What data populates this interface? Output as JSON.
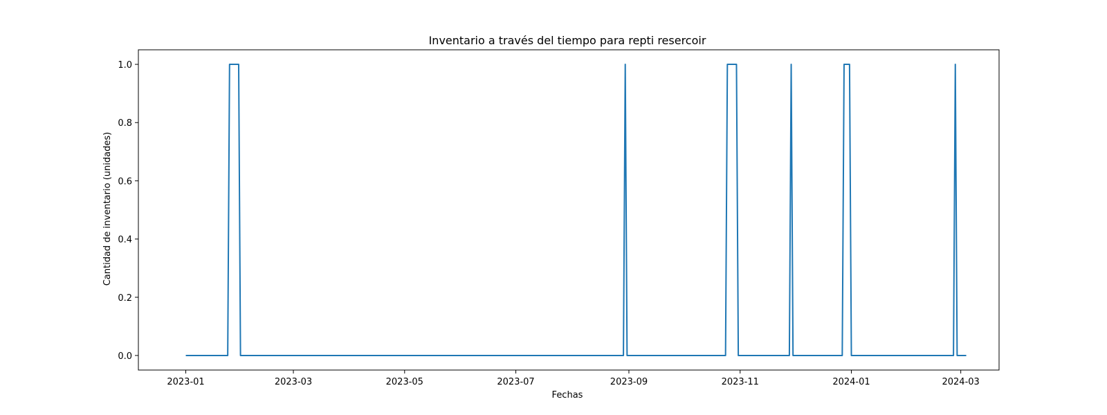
{
  "chart_data": {
    "type": "line",
    "title": "Inventario a través del tiempo para  repti resercoir",
    "xlabel": "Fechas",
    "ylabel": "Cantidad de inventario (unidades)",
    "xlim": [
      "2022-12-06",
      "2024-03-22"
    ],
    "ylim": [
      -0.05,
      1.05
    ],
    "grid": false,
    "x_ticks": [
      "2023-01",
      "2023-03",
      "2023-05",
      "2023-07",
      "2023-09",
      "2023-11",
      "2024-01",
      "2024-03"
    ],
    "y_ticks": [
      "0.0",
      "0.2",
      "0.4",
      "0.6",
      "0.8",
      "1.0"
    ],
    "y_tick_values": [
      0,
      0.2,
      0.4,
      0.6,
      0.8,
      1.0
    ],
    "series": [
      {
        "color": "#1f77b4",
        "x": [
          "2023-01-01",
          "2023-01-24",
          "2023-01-25",
          "2023-01-30",
          "2023-01-31",
          "2023-08-29",
          "2023-08-30",
          "2023-08-31",
          "2023-10-24",
          "2023-10-25",
          "2023-10-30",
          "2023-10-31",
          "2023-11-28",
          "2023-11-29",
          "2023-11-30",
          "2023-12-27",
          "2023-12-28",
          "2023-12-31",
          "2024-01-01",
          "2024-02-26",
          "2024-02-27",
          "2024-02-28",
          "2024-03-04"
        ],
        "y": [
          0,
          0,
          1,
          1,
          0,
          0,
          1,
          0,
          0,
          1,
          1,
          0,
          0,
          1,
          0,
          0,
          1,
          1,
          0,
          0,
          1,
          0,
          0
        ]
      }
    ]
  }
}
